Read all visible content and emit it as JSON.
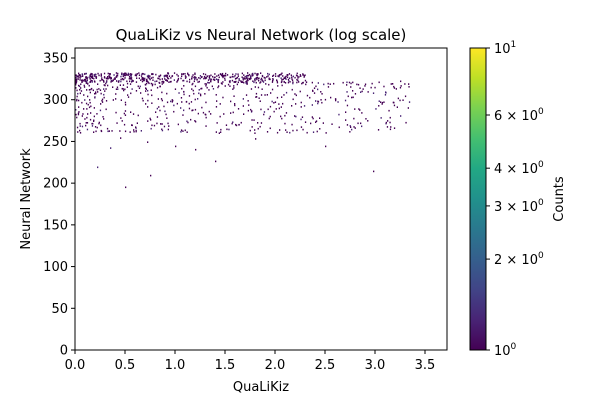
{
  "chart_data": {
    "type": "heatmap",
    "title": "QuaLiKiz vs Neural Network (log scale)",
    "xlabel": "QuaLiKiz",
    "ylabel": "Neural Network",
    "xlim": [
      0.0,
      3.72
    ],
    "ylim": [
      0,
      362
    ],
    "xticks": [
      0.0,
      0.5,
      1.0,
      1.5,
      2.0,
      2.5,
      3.0,
      3.5
    ],
    "xtick_labels": [
      "0.0",
      "0.5",
      "1.0",
      "1.5",
      "2.0",
      "2.5",
      "3.0",
      "3.5"
    ],
    "yticks": [
      0,
      50,
      100,
      150,
      200,
      250,
      300,
      350
    ],
    "ytick_labels": [
      "0",
      "50",
      "100",
      "150",
      "200",
      "250",
      "300",
      "350"
    ],
    "colormap": "viridis",
    "colorbar": {
      "label": "Counts",
      "scale": "log",
      "range": [
        1,
        10
      ],
      "ticks": [
        1,
        2,
        3,
        4,
        6,
        10
      ],
      "tick_bases": [
        "10",
        "2",
        "3",
        "4",
        "6",
        "10"
      ],
      "tick_exponents": [
        "0",
        "0",
        "0",
        "0",
        "0",
        "1"
      ],
      "tick_mantissa_prefix": [
        "",
        "",
        "",
        "",
        "",
        ""
      ],
      "tick_times": [
        "",
        "× 10",
        "× 10",
        "× 10",
        "× 10",
        ""
      ]
    },
    "grid": false,
    "dense_band": {
      "x_range": [
        0.0,
        2.3
      ],
      "y_range": [
        322,
        333
      ],
      "count": 520
    },
    "scatter_region": {
      "x_range": [
        0.0,
        3.35
      ],
      "y_range": [
        260,
        322
      ],
      "count": 560
    },
    "points": [
      [
        0.03,
        300
      ],
      [
        0.05,
        315
      ],
      [
        0.08,
        290
      ],
      [
        0.1,
        270
      ],
      [
        0.12,
        305
      ],
      [
        0.15,
        285
      ],
      [
        0.18,
        262
      ],
      [
        0.2,
        310
      ],
      [
        0.22,
        220
      ],
      [
        0.25,
        296
      ],
      [
        0.28,
        278
      ],
      [
        0.32,
        318
      ],
      [
        0.35,
        243
      ],
      [
        0.4,
        302
      ],
      [
        0.45,
        255
      ],
      [
        0.48,
        312
      ],
      [
        0.5,
        196
      ],
      [
        0.55,
        286
      ],
      [
        0.6,
        268
      ],
      [
        0.65,
        309
      ],
      [
        0.7,
        296
      ],
      [
        0.72,
        250
      ],
      [
        0.75,
        210
      ],
      [
        0.8,
        286
      ],
      [
        0.85,
        272
      ],
      [
        0.95,
        299
      ],
      [
        1.0,
        245
      ],
      [
        1.05,
        291
      ],
      [
        1.15,
        277
      ],
      [
        1.2,
        241
      ],
      [
        1.25,
        306
      ],
      [
        1.35,
        284
      ],
      [
        1.4,
        227
      ],
      [
        1.45,
        262
      ],
      [
        1.55,
        299
      ],
      [
        1.6,
        271
      ],
      [
        1.75,
        289
      ],
      [
        1.8,
        254
      ],
      [
        1.95,
        309
      ],
      [
        2.05,
        281
      ],
      [
        2.2,
        296
      ],
      [
        2.4,
        274
      ],
      [
        2.5,
        245
      ],
      [
        2.6,
        300
      ],
      [
        2.7,
        286
      ],
      [
        2.85,
        310
      ],
      [
        2.98,
        215
      ],
      [
        3.05,
        298
      ],
      [
        3.1,
        310
      ],
      [
        3.25,
        323
      ]
    ]
  }
}
